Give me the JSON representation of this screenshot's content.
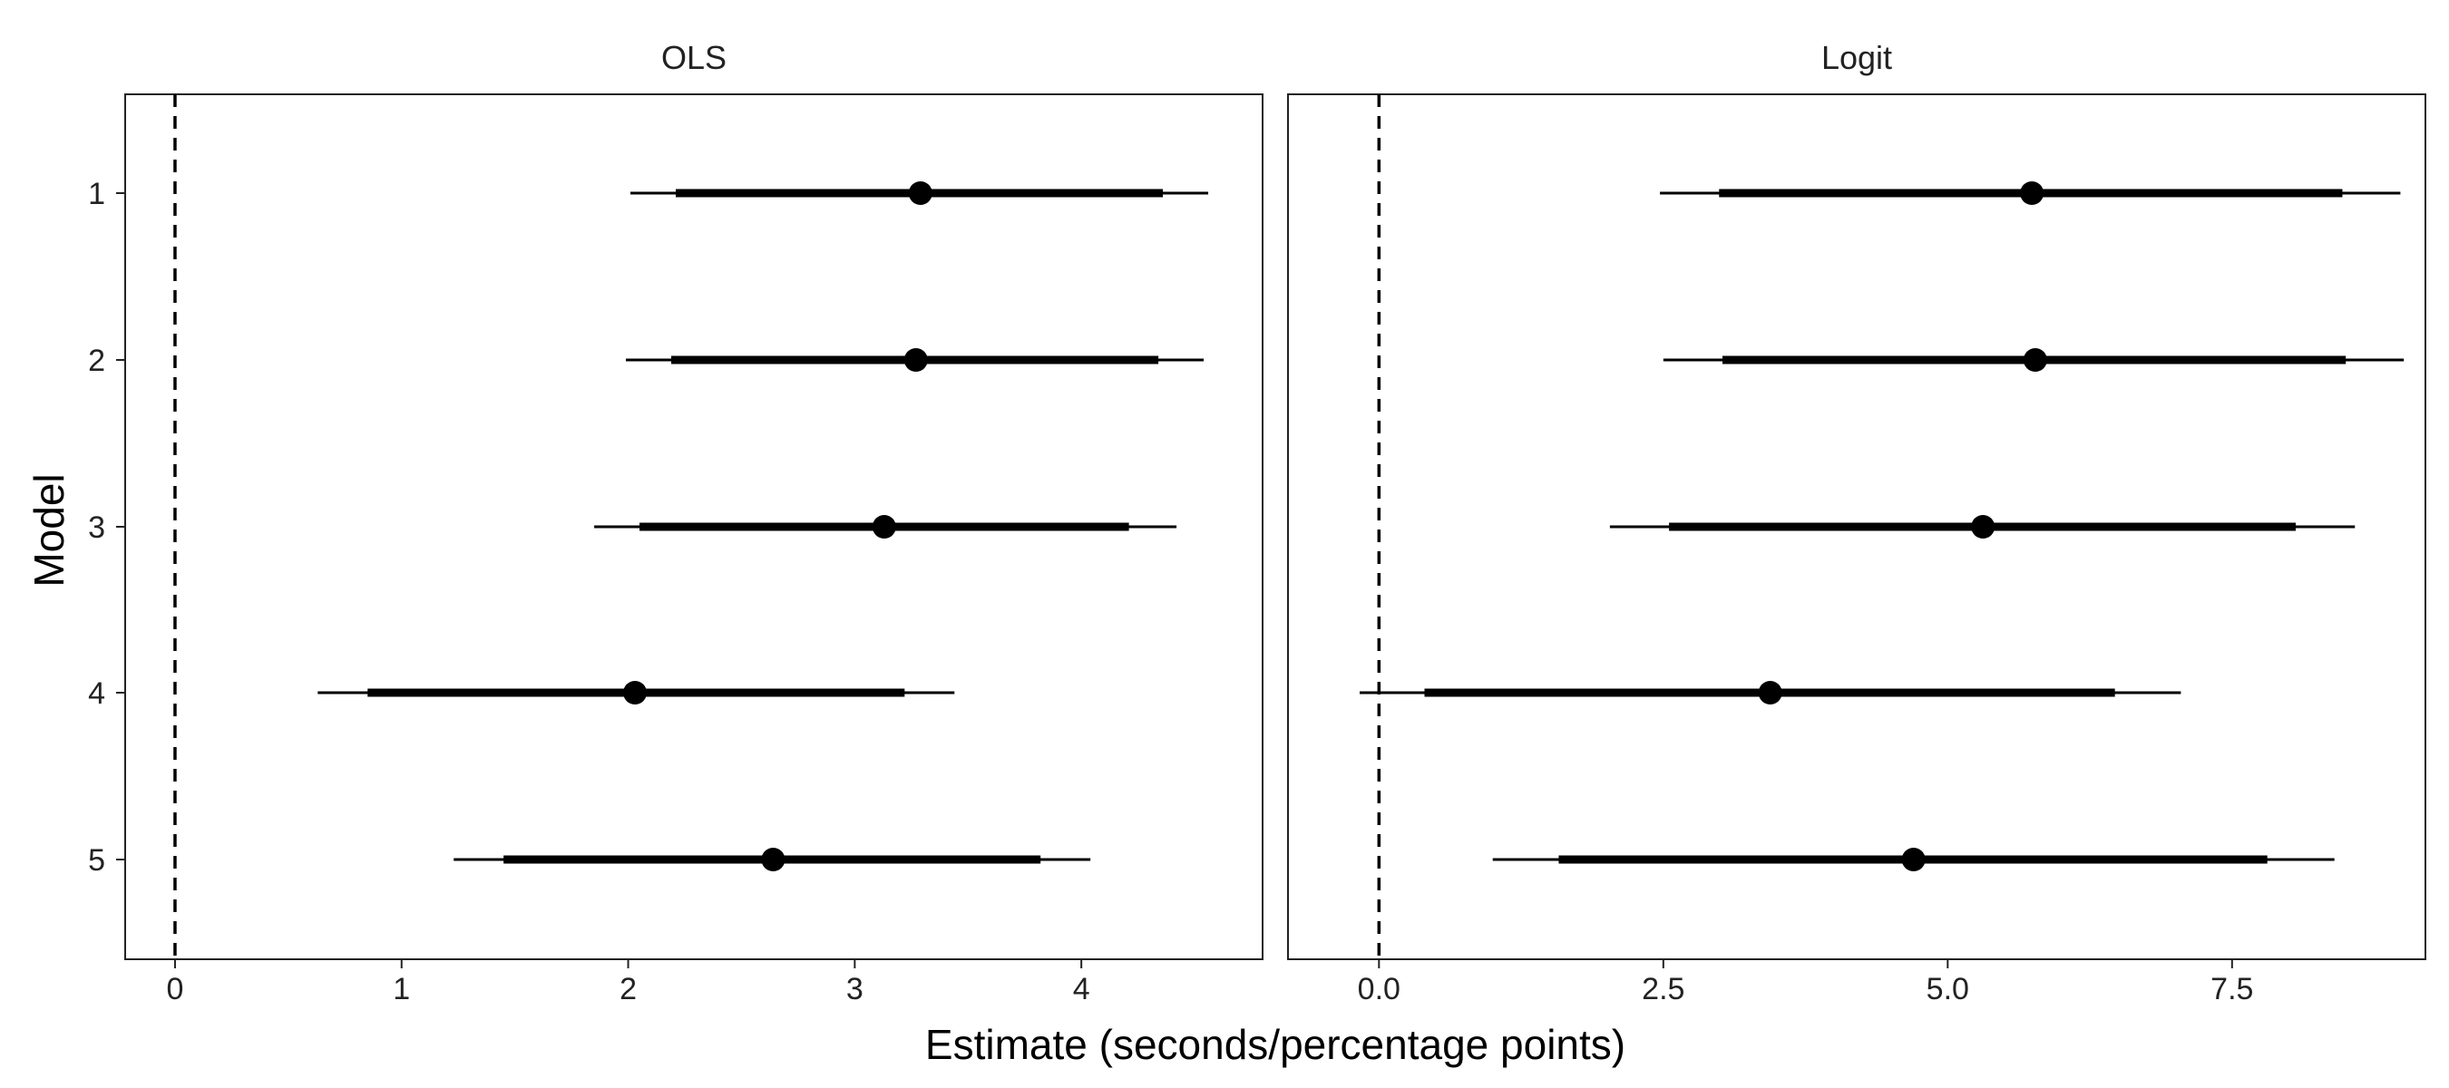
{
  "chart_data": {
    "type": "coefficient-plot",
    "xlabel": "Estimate (seconds/percentage points)",
    "ylabel": "Model",
    "categories": [
      "1",
      "2",
      "3",
      "4",
      "5"
    ],
    "reference_line": 0,
    "grid": false,
    "panels": [
      {
        "title": "OLS",
        "xlim": [
          -0.22,
          4.8
        ],
        "xticks": [
          0,
          1,
          2,
          3,
          4
        ],
        "xtick_labels": [
          "0",
          "1",
          "2",
          "3",
          "4"
        ],
        "points": [
          {
            "model": "1",
            "estimate": 3.29,
            "inner": [
              2.21,
              4.36
            ],
            "outer": [
              2.01,
              4.56
            ]
          },
          {
            "model": "2",
            "estimate": 3.27,
            "inner": [
              2.19,
              4.34
            ],
            "outer": [
              1.99,
              4.54
            ]
          },
          {
            "model": "3",
            "estimate": 3.13,
            "inner": [
              2.05,
              4.21
            ],
            "outer": [
              1.85,
              4.42
            ]
          },
          {
            "model": "4",
            "estimate": 2.03,
            "inner": [
              0.85,
              3.22
            ],
            "outer": [
              0.63,
              3.44
            ]
          },
          {
            "model": "5",
            "estimate": 2.64,
            "inner": [
              1.45,
              3.82
            ],
            "outer": [
              1.23,
              4.04
            ]
          }
        ]
      },
      {
        "title": "Logit",
        "xlim": [
          -0.8,
          9.2
        ],
        "xticks": [
          0,
          2.5,
          5,
          7.5
        ],
        "xtick_labels": [
          "0.0",
          "2.5",
          "5.0",
          "7.5"
        ],
        "points": [
          {
            "model": "1",
            "estimate": 5.74,
            "inner": [
              2.99,
              8.47
            ],
            "outer": [
              2.47,
              8.98
            ]
          },
          {
            "model": "2",
            "estimate": 5.77,
            "inner": [
              3.02,
              8.5
            ],
            "outer": [
              2.5,
              9.01
            ]
          },
          {
            "model": "3",
            "estimate": 5.31,
            "inner": [
              2.55,
              8.06
            ],
            "outer": [
              2.03,
              8.58
            ]
          },
          {
            "model": "4",
            "estimate": 3.44,
            "inner": [
              0.4,
              6.47
            ],
            "outer": [
              -0.17,
              7.05
            ]
          },
          {
            "model": "5",
            "estimate": 4.7,
            "inner": [
              1.58,
              7.81
            ],
            "outer": [
              1.0,
              8.4
            ]
          }
        ]
      }
    ]
  }
}
